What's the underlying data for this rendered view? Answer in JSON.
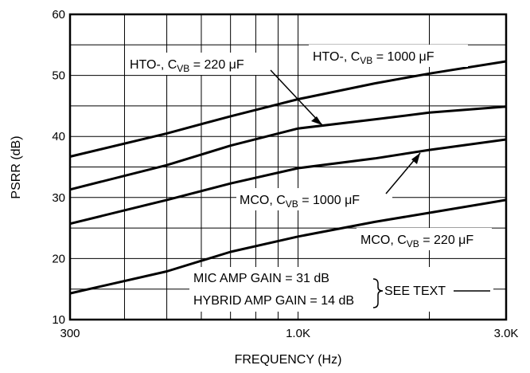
{
  "chart_data": {
    "type": "line",
    "title": "",
    "xlabel": "FREQUENCY (Hz)",
    "ylabel": "PSRR (dB)",
    "x_scale": "log",
    "xlim": [
      300,
      3000
    ],
    "ylim": [
      10,
      60
    ],
    "grid": true,
    "x_tick_labels": [
      {
        "value": 300,
        "label": "300"
      },
      {
        "value": 1000,
        "label": "1.0K"
      },
      {
        "value": 3000,
        "label": "3.0K"
      }
    ],
    "y_tick_labels": [
      {
        "value": 10,
        "label": "10"
      },
      {
        "value": 20,
        "label": "20"
      },
      {
        "value": 30,
        "label": "30"
      },
      {
        "value": 40,
        "label": "40"
      },
      {
        "value": 50,
        "label": "50"
      },
      {
        "value": 60,
        "label": "60"
      }
    ],
    "series": [
      {
        "x": [
          300,
          500,
          700,
          1000,
          1500,
          2000,
          3000
        ],
        "y": [
          36.7,
          40.5,
          43.3,
          46.1,
          48.7,
          50.3,
          52.3
        ]
      },
      {
        "x": [
          300,
          500,
          700,
          1000,
          1500,
          2000,
          3000
        ],
        "y": [
          31.3,
          35.3,
          38.5,
          41.3,
          42.8,
          43.9,
          44.9
        ]
      },
      {
        "x": [
          300,
          500,
          700,
          1000,
          1500,
          2000,
          3000
        ],
        "y": [
          25.7,
          29.6,
          32.3,
          34.8,
          36.4,
          37.8,
          39.5
        ]
      },
      {
        "x": [
          300,
          500,
          700,
          1000,
          1500,
          2000,
          3000
        ],
        "y": [
          14.3,
          17.9,
          21.1,
          23.6,
          26.0,
          27.5,
          29.6
        ]
      }
    ],
    "annotations": {
      "hto_220": {
        "prefix": "HTO-, C",
        "sub": "VB",
        "suffix": " = 220 μF"
      },
      "hto_1000": {
        "prefix": "HTO-, C",
        "sub": "VB",
        "suffix": " = 1000 μF"
      },
      "mco_1000": {
        "prefix": "MCO, C",
        "sub": "VB",
        "suffix": " = 1000 μF"
      },
      "mco_220": {
        "prefix": "MCO, C",
        "sub": "VB",
        "suffix": " = 220 μF"
      },
      "mic_gain": "MIC AMP GAIN = 31 dB",
      "hybrid_gain": "HYBRID AMP GAIN = 14 dB",
      "see_text": "SEE TEXT"
    }
  }
}
